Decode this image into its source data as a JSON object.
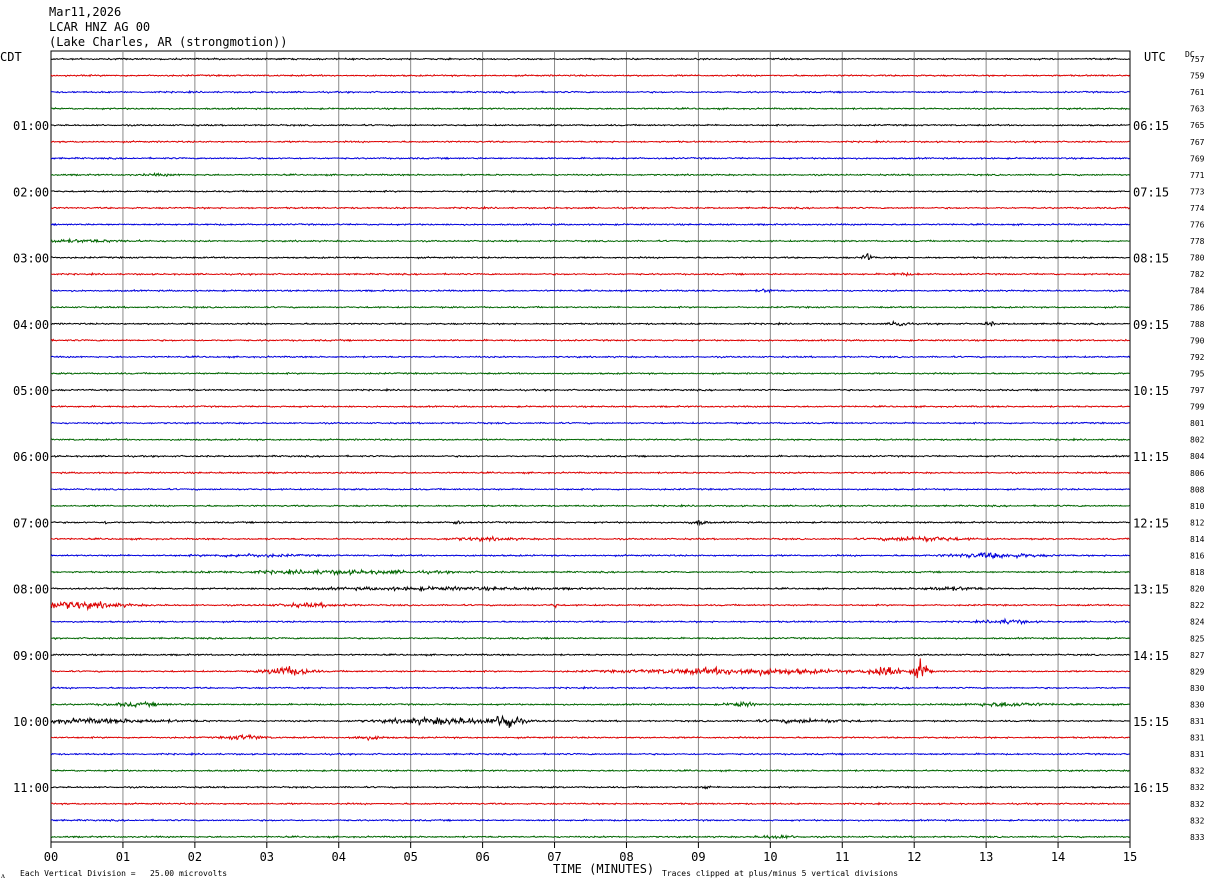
{
  "header": {
    "date": "Mar11,2026",
    "station": "LCAR HNZ AG 00",
    "location": "(Lake Charles, AR (strongmotion))"
  },
  "left_tz_label": "CDT",
  "right_tz_label": "UTC",
  "dc_label": "DC",
  "footer": {
    "scale_note": "Each Vertical Division =   25.00 microvolts",
    "clip_note": "Traces clipped at plus/minus 5 vertical divisions",
    "corner_mark": "ᴧ"
  },
  "chart_data": {
    "type": "line",
    "title": "",
    "xlabel": "TIME (MINUTES)",
    "ylabel": "",
    "xlim": [
      0,
      15
    ],
    "x_ticks": [
      "00",
      "01",
      "02",
      "03",
      "04",
      "05",
      "06",
      "07",
      "08",
      "09",
      "10",
      "11",
      "12",
      "13",
      "14",
      "15"
    ],
    "grid": "vertical lines at each minute",
    "trace_colors": [
      "#000000",
      "#dd0000",
      "#0000dd",
      "#006600"
    ],
    "minutes_per_trace": 15,
    "left_hour_labels": [
      "01:00",
      "02:00",
      "03:00",
      "04:00",
      "05:00",
      "06:00",
      "07:00",
      "08:00",
      "09:00",
      "10:00",
      "11:00"
    ],
    "right_hour_labels": [
      "06:15",
      "07:15",
      "08:15",
      "09:15",
      "10:15",
      "11:15",
      "12:15",
      "13:15",
      "14:15",
      "15:15",
      "16:15"
    ],
    "trace_dc_offsets": [
      "757",
      "759",
      "761",
      "763",
      "765",
      "767",
      "769",
      "771",
      "773",
      "774",
      "776",
      "778",
      "780",
      "782",
      "784",
      "786",
      "788",
      "790",
      "792",
      "795",
      "797",
      "799",
      "801",
      "802",
      "804",
      "806",
      "808",
      "810",
      "812",
      "814",
      "816",
      "818",
      "820",
      "822",
      "824",
      "825",
      "827",
      "829",
      "830",
      "830",
      "831",
      "831",
      "831",
      "832",
      "832",
      "832",
      "832",
      "833"
    ],
    "events": [
      {
        "trace": 7,
        "minute": 1.5,
        "amplitude": 1.0,
        "duration": 0.6
      },
      {
        "trace": 11,
        "minute": 0.3,
        "amplitude": 1.5,
        "duration": 1.8
      },
      {
        "trace": 12,
        "minute": 11.35,
        "amplitude": 6.0,
        "duration": 0.15
      },
      {
        "trace": 13,
        "minute": 11.85,
        "amplitude": 1.2,
        "duration": 0.4
      },
      {
        "trace": 14,
        "minute": 9.95,
        "amplitude": 2.0,
        "duration": 0.25
      },
      {
        "trace": 16,
        "minute": 11.8,
        "amplitude": 5.0,
        "duration": 0.25
      },
      {
        "trace": 16,
        "minute": 13.05,
        "amplitude": 3.0,
        "duration": 0.15
      },
      {
        "trace": 16,
        "minute": 1.6,
        "amplitude": 3.0,
        "duration": 0.05
      },
      {
        "trace": 28,
        "minute": 5.65,
        "amplitude": 6.0,
        "duration": 0.1
      },
      {
        "trace": 28,
        "minute": 0.8,
        "amplitude": 3.0,
        "duration": 0.1
      },
      {
        "trace": 28,
        "minute": 9.0,
        "amplitude": 2.5,
        "duration": 0.3
      },
      {
        "trace": 29,
        "minute": 12.1,
        "amplitude": 2.8,
        "duration": 1.3
      },
      {
        "trace": 29,
        "minute": 6.0,
        "amplitude": 1.6,
        "duration": 1.2
      },
      {
        "trace": 30,
        "minute": 13.1,
        "amplitude": 3.0,
        "duration": 1.4
      },
      {
        "trace": 30,
        "minute": 2.8,
        "amplitude": 1.5,
        "duration": 1.5
      },
      {
        "trace": 31,
        "minute": 4.0,
        "amplitude": 2.0,
        "duration": 3.5
      },
      {
        "trace": 32,
        "minute": 5.3,
        "amplitude": 1.6,
        "duration": 4.0
      },
      {
        "trace": 32,
        "minute": 12.5,
        "amplitude": 2.0,
        "duration": 1.0
      },
      {
        "trace": 33,
        "minute": 0.3,
        "amplitude": 4.5,
        "duration": 1.6
      },
      {
        "trace": 33,
        "minute": 3.6,
        "amplitude": 2.0,
        "duration": 1.2
      },
      {
        "trace": 33,
        "minute": 7.0,
        "amplitude": 3.0,
        "duration": 0.1
      },
      {
        "trace": 34,
        "minute": 13.3,
        "amplitude": 2.5,
        "duration": 0.7
      },
      {
        "trace": 37,
        "minute": 3.3,
        "amplitude": 6.0,
        "duration": 0.7
      },
      {
        "trace": 37,
        "minute": 9.5,
        "amplitude": 4.0,
        "duration": 3.2
      },
      {
        "trace": 37,
        "minute": 11.6,
        "amplitude": 9.0,
        "duration": 0.5
      },
      {
        "trace": 37,
        "minute": 12.1,
        "amplitude": 13.0,
        "duration": 0.25
      },
      {
        "trace": 39,
        "minute": 1.2,
        "amplitude": 2.0,
        "duration": 1.0
      },
      {
        "trace": 39,
        "minute": 9.6,
        "amplitude": 2.5,
        "duration": 0.5
      },
      {
        "trace": 39,
        "minute": 13.3,
        "amplitude": 2.5,
        "duration": 1.2
      },
      {
        "trace": 40,
        "minute": 0.5,
        "amplitude": 2.5,
        "duration": 2.8
      },
      {
        "trace": 40,
        "minute": 5.5,
        "amplitude": 4.0,
        "duration": 2.0
      },
      {
        "trace": 40,
        "minute": 6.35,
        "amplitude": 12.0,
        "duration": 0.35
      },
      {
        "trace": 40,
        "minute": 10.5,
        "amplitude": 2.0,
        "duration": 1.5
      },
      {
        "trace": 41,
        "minute": 2.7,
        "amplitude": 3.0,
        "duration": 0.6
      },
      {
        "trace": 41,
        "minute": 4.4,
        "amplitude": 2.0,
        "duration": 0.6
      },
      {
        "trace": 44,
        "minute": 9.1,
        "amplitude": 4.0,
        "duration": 0.1
      },
      {
        "trace": 47,
        "minute": 10.1,
        "amplitude": 2.0,
        "duration": 0.6
      }
    ]
  }
}
